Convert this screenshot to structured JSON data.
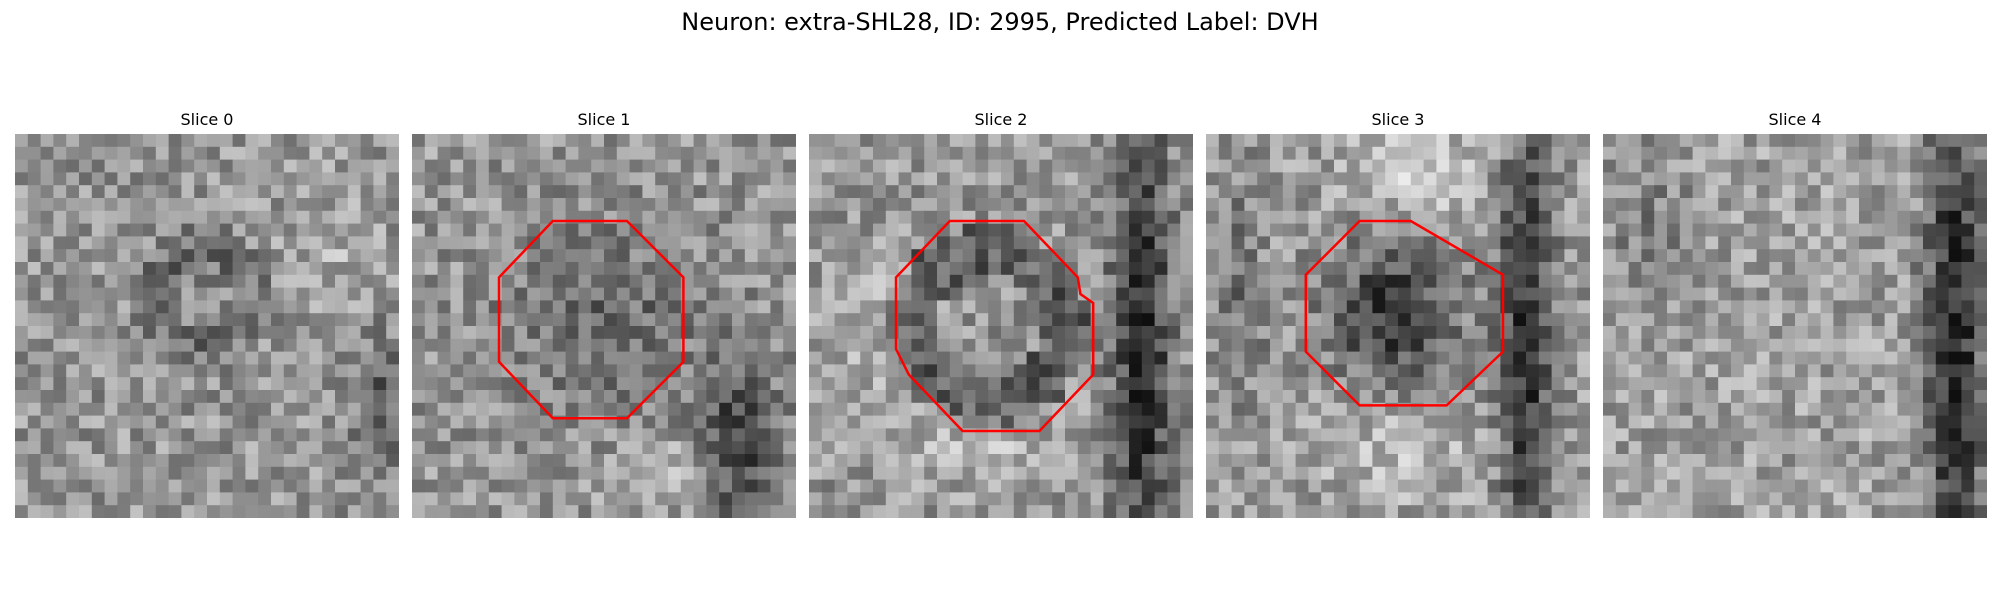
{
  "figure": {
    "title": "Neuron: extra-SHL28, ID: 2995, Predicted Label: DVH"
  },
  "slices": [
    {
      "title": "Slice 0",
      "roi": false,
      "roi_color": "#ff0000"
    },
    {
      "title": "Slice 1",
      "roi": true,
      "roi_color": "#ff0000"
    },
    {
      "title": "Slice 2",
      "roi": true,
      "roi_color": "#ff0000"
    },
    {
      "title": "Slice 3",
      "roi": true,
      "roi_color": "#ff0000"
    },
    {
      "title": "Slice 4",
      "roi": false,
      "roi_color": "#ff0000"
    }
  ]
}
